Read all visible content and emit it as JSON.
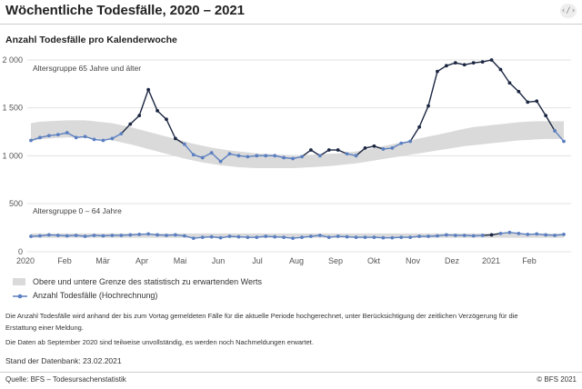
{
  "header": {
    "title": "Wöchentliche Todesfälle, 2020 – 2021",
    "embed_icon": "code-brackets-icon",
    "embed_label": "‹/›"
  },
  "subtitle": "Anzahl Todesfälle pro Kalenderwoche",
  "chart_data": {
    "type": "line",
    "title": "Anzahl Todesfälle pro Kalenderwoche",
    "x_labels": [
      "2020",
      "Feb",
      "Mär",
      "Apr",
      "Mai",
      "Jun",
      "Jul",
      "Aug",
      "Sep",
      "Okt",
      "Nov",
      "Dez",
      "2021",
      "Feb"
    ],
    "yticks": [
      "2 000",
      "1 500",
      "1 000",
      "500",
      "0"
    ],
    "ylim": [
      0,
      2000
    ],
    "colors": {
      "expected_line": "#5b7fc0",
      "excess_line": "#1c2742",
      "band": "#dadada",
      "grid": "#e3e3e3"
    },
    "panels": [
      {
        "name": "Altersgruppe 65 Jahre und älter",
        "series_name": "Anzahl Todesfälle (Hochrechnung)",
        "values": [
          1160,
          1190,
          1210,
          1220,
          1240,
          1190,
          1200,
          1170,
          1160,
          1180,
          1230,
          1330,
          1420,
          1690,
          1470,
          1380,
          1180,
          1120,
          1010,
          980,
          1030,
          940,
          1020,
          1000,
          990,
          1000,
          1000,
          1000,
          980,
          970,
          990,
          1060,
          1000,
          1060,
          1060,
          1020,
          1000,
          1080,
          1100,
          1070,
          1080,
          1130,
          1150,
          1300,
          1520,
          1880,
          1940,
          1970,
          1950,
          1970,
          1980,
          2000,
          1900,
          1760,
          1670,
          1560,
          1570,
          1420,
          1260,
          1150
        ],
        "band_upper": [
          1340,
          1355,
          1360,
          1365,
          1370,
          1370,
          1370,
          1360,
          1350,
          1340,
          1320,
          1300,
          1275,
          1250,
          1225,
          1200,
          1175,
          1150,
          1125,
          1105,
          1085,
          1070,
          1055,
          1045,
          1035,
          1025,
          1020,
          1015,
          1010,
          1005,
          1005,
          1010,
          1015,
          1020,
          1025,
          1035,
          1045,
          1060,
          1080,
          1100,
          1120,
          1140,
          1160,
          1180,
          1200,
          1220,
          1240,
          1260,
          1280,
          1300,
          1310,
          1320,
          1330,
          1340,
          1350,
          1355,
          1360,
          1360,
          1360,
          1360
        ],
        "band_lower": [
          1150,
          1170,
          1180,
          1185,
          1190,
          1190,
          1188,
          1180,
          1170,
          1160,
          1140,
          1120,
          1095,
          1070,
          1045,
          1020,
          995,
          970,
          950,
          930,
          915,
          900,
          890,
          880,
          875,
          870,
          870,
          870,
          870,
          870,
          875,
          880,
          885,
          892,
          900,
          910,
          920,
          935,
          950,
          965,
          980,
          995,
          1010,
          1025,
          1040,
          1055,
          1070,
          1085,
          1100,
          1110,
          1120,
          1130,
          1140,
          1150,
          1160,
          1165,
          1170,
          1175,
          1175,
          1175
        ]
      },
      {
        "name": "Altersgruppe 0 – 64 Jahre",
        "series_name": "Anzahl Todesfälle (Hochrechnung)",
        "values": [
          160,
          165,
          175,
          170,
          165,
          170,
          160,
          170,
          165,
          170,
          170,
          175,
          180,
          185,
          175,
          170,
          175,
          165,
          140,
          150,
          155,
          145,
          160,
          155,
          150,
          150,
          160,
          155,
          150,
          140,
          150,
          160,
          170,
          150,
          160,
          155,
          150,
          150,
          150,
          145,
          145,
          150,
          150,
          160,
          160,
          165,
          175,
          170,
          170,
          165,
          170,
          175,
          190,
          200,
          190,
          180,
          185,
          175,
          170,
          180
        ],
        "excess_index": 51,
        "band_upper": [
          190,
          190,
          190,
          190,
          190,
          190,
          190,
          190,
          190,
          190,
          190,
          190,
          190,
          190,
          190,
          190,
          190,
          190,
          190,
          190,
          190,
          190,
          190,
          190,
          190,
          190,
          190,
          190,
          190,
          190,
          190,
          190,
          190,
          190,
          190,
          190,
          190,
          190,
          190,
          190,
          190,
          190,
          190,
          190,
          190,
          190,
          190,
          190,
          190,
          190,
          190,
          190,
          190,
          190,
          190,
          190,
          190,
          190,
          190,
          190
        ],
        "band_lower": [
          145,
          145,
          145,
          145,
          145,
          145,
          145,
          145,
          145,
          145,
          145,
          145,
          145,
          145,
          145,
          145,
          145,
          145,
          145,
          145,
          145,
          145,
          145,
          145,
          145,
          145,
          145,
          145,
          145,
          145,
          145,
          145,
          145,
          145,
          145,
          145,
          145,
          145,
          145,
          145,
          145,
          145,
          145,
          145,
          145,
          145,
          145,
          145,
          145,
          145,
          145,
          145,
          145,
          145,
          145,
          145,
          145,
          145,
          145,
          145
        ]
      }
    ]
  },
  "legend": {
    "band_label": "Obere und untere Grenze des statistisch zu erwartenden Werts",
    "line_label": "Anzahl Todesfälle (Hochrechnung)"
  },
  "notes": {
    "line1": "Die Anzahl Todesfälle wird anhand der bis zum Vortag gemeldeten Fälle für die aktuelle Periode hochgerechnet, unter Berücksichtigung der zeitlichen Verzögerung für die",
    "line2": "Erstattung einer Meldung.",
    "line3": "Die Daten ab September 2020 sind teilweise unvollständig, es werden noch Nachmeldungen erwartet."
  },
  "stand": "Stand der Datenbank: 23.02.2021",
  "footer": {
    "source": "Quelle: BFS – Todesursachenstatistik",
    "copyright": "© BFS 2021"
  }
}
